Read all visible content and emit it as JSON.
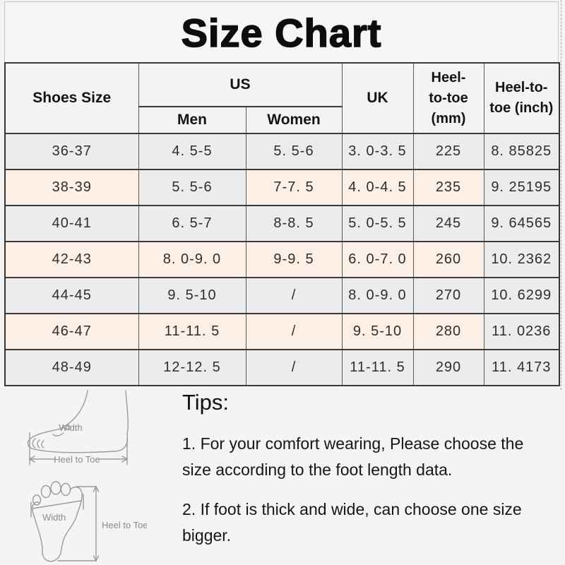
{
  "title": "Size Chart",
  "chart_data": {
    "type": "table",
    "title": "Size Chart",
    "columns": [
      "Shoes Size",
      "US Men",
      "US Women",
      "UK",
      "Heel-to-toe (mm)",
      "Heel-to-toe (inch)"
    ],
    "rows": [
      [
        "36-37",
        "4. 5-5",
        "5. 5-6",
        "3. 0-3. 5",
        "225",
        "8. 85825"
      ],
      [
        "38-39",
        "5. 5-6",
        "7-7. 5",
        "4. 0-4. 5",
        "235",
        "9. 25195"
      ],
      [
        "40-41",
        "6. 5-7",
        "8-8. 5",
        "5. 0-5. 5",
        "245",
        "9. 64565"
      ],
      [
        "42-43",
        "8. 0-9. 0",
        "9-9. 5",
        "6. 0-7. 0",
        "260",
        "10. 2362"
      ],
      [
        "44-45",
        "9. 5-10",
        "/",
        "8. 0-9. 0",
        "270",
        "10. 6299"
      ],
      [
        "46-47",
        "11-11. 5",
        "/",
        "9. 5-10",
        "280",
        "11. 0236"
      ],
      [
        "48-49",
        "12-12. 5",
        "/",
        "11-11. 5",
        "290",
        "11. 4173"
      ]
    ]
  },
  "table": {
    "headers": {
      "shoes_size": "Shoes Size",
      "us": "US",
      "men": "Men",
      "women": "Women",
      "uk": "UK",
      "heel_mm": "Heel-\nto-toe\n(mm)",
      "heel_inch": "Heel-to-\ntoe (inch)"
    }
  },
  "tips": {
    "heading": "Tips:",
    "items": [
      "1. For your comfort wearing, Please choose the\nsize according to the foot length data.",
      "2. If foot is thick and wide, can choose one size\nbigger."
    ]
  },
  "diagrams": {
    "side_foot": {
      "width_label": "Width",
      "length_label": "Heel to Toe"
    },
    "foot_print": {
      "width_label": "Width",
      "length_label": "Heel to Toe"
    }
  },
  "colors": {
    "row_pink": "#fcefe6",
    "row_grey": "#ececec",
    "header_grey": "#f3f3f3",
    "border_dark": "#3a3a3a",
    "diagram_stroke": "#9b9b9b"
  }
}
